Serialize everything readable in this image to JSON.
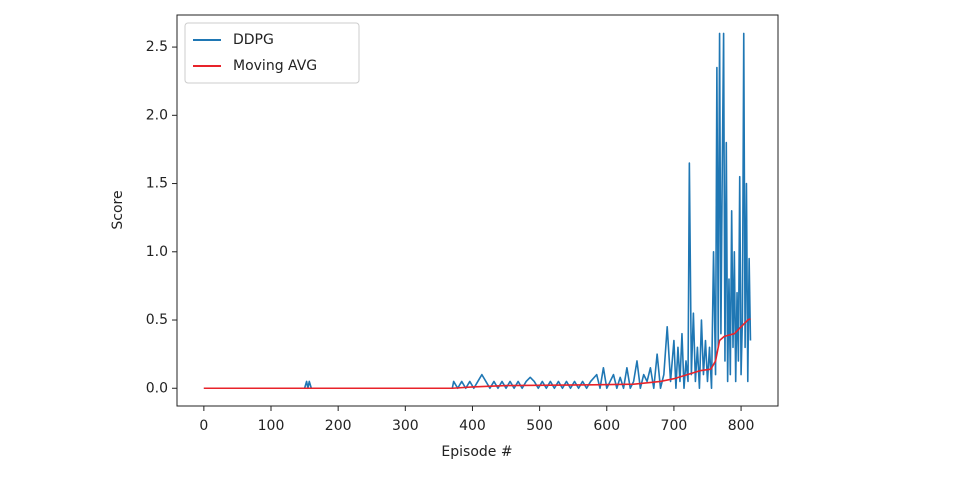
{
  "chart_data": {
    "type": "line",
    "xlabel": "Episode #",
    "ylabel": "Score",
    "xlim": [
      -40,
      855
    ],
    "ylim": [
      -0.13,
      2.735
    ],
    "xticks": [
      0,
      100,
      200,
      300,
      400,
      500,
      600,
      700,
      800
    ],
    "yticks": [
      {
        "value": 0,
        "label": "0.0"
      },
      0.5,
      {
        "value": 1,
        "label": "1.0"
      },
      1.5,
      {
        "value": 2,
        "label": "2.0"
      },
      2.5
    ],
    "legend": "upper left",
    "series": [
      {
        "name": "DDPG",
        "color": "#1f77b4",
        "x": [
          0,
          150,
          153,
          155,
          157,
          160,
          370,
          372,
          378,
          384,
          390,
          396,
          402,
          408,
          414,
          420,
          426,
          432,
          438,
          444,
          450,
          456,
          462,
          468,
          474,
          480,
          486,
          492,
          498,
          504,
          510,
          516,
          522,
          528,
          534,
          540,
          546,
          552,
          558,
          564,
          570,
          576,
          585,
          590,
          595,
          600,
          605,
          610,
          615,
          620,
          625,
          630,
          635,
          640,
          645,
          650,
          655,
          660,
          665,
          670,
          675,
          680,
          685,
          690,
          695,
          700,
          703,
          706,
          709,
          712,
          715,
          718,
          721,
          723,
          726,
          729,
          732,
          735,
          738,
          741,
          744,
          747,
          750,
          753,
          756,
          759,
          762,
          764,
          766,
          768,
          770,
          772,
          774,
          776,
          778,
          780,
          782,
          784,
          786,
          788,
          790,
          792,
          794,
          796,
          798,
          800,
          802,
          804,
          806,
          808,
          810,
          812,
          814
        ],
        "values": [
          0,
          0,
          0.05,
          0,
          0.05,
          0,
          0,
          0.05,
          0,
          0.05,
          0,
          0.05,
          0,
          0.05,
          0.1,
          0.05,
          0,
          0.05,
          0,
          0.05,
          0,
          0.05,
          0,
          0.05,
          0,
          0.05,
          0.08,
          0.05,
          0,
          0.05,
          0,
          0.05,
          0,
          0.05,
          0,
          0.05,
          0,
          0.05,
          0,
          0.05,
          0,
          0.05,
          0.1,
          0,
          0.15,
          0,
          0.05,
          0.1,
          0,
          0.08,
          0,
          0.15,
          0,
          0.05,
          0.2,
          0,
          0.1,
          0.05,
          0.15,
          0,
          0.25,
          0,
          0.1,
          0.45,
          0.05,
          0.35,
          0,
          0.3,
          0.05,
          0.4,
          0,
          0.2,
          0.05,
          1.65,
          0.1,
          0.55,
          0.05,
          0.3,
          0,
          0.5,
          0.1,
          0.35,
          0.05,
          0.3,
          0,
          1.0,
          0.1,
          2.35,
          0.3,
          2.6,
          0.4,
          1.6,
          2.6,
          0.2,
          1.8,
          0.05,
          0.8,
          0.1,
          1.3,
          0.3,
          1.0,
          0.05,
          0.7,
          0.2,
          1.55,
          0.1,
          0.5,
          2.6,
          0.3,
          1.5,
          0.05,
          0.95,
          0.35
        ]
      },
      {
        "name": "Moving AVG",
        "color": "#e8232a",
        "x": [
          0,
          370,
          400,
          450,
          580,
          640,
          680,
          700,
          720,
          740,
          755,
          762,
          768,
          775,
          790,
          800,
          810,
          814
        ],
        "values": [
          0,
          0,
          0.01,
          0.02,
          0.025,
          0.03,
          0.05,
          0.07,
          0.1,
          0.13,
          0.14,
          0.2,
          0.35,
          0.38,
          0.4,
          0.45,
          0.5,
          0.51
        ]
      }
    ]
  }
}
